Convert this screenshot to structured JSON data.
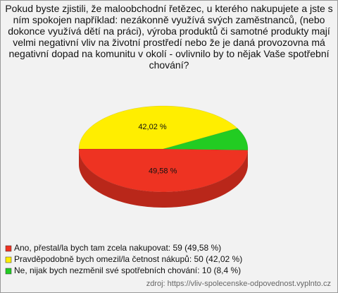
{
  "chart_data": {
    "type": "pie",
    "title": "Pokud byste zjistili, že maloobchodní řetězec, u kterého nakupujete a jste s ním spokojen například: nezákonně využívá svých zaměstnanců, (nebo dokonce využívá dětí na práci), výroba produktů či samotné produkty mají velmi negativní vliv na životní prostředí nebo že je daná provozovna má negativní dopad na komunitu v okolí - ovlivnilo by to nějak Vaše spotřební chování?",
    "categories": [
      "Ano, přestal/la bych tam zcela nakupovat: 59 (49,58 %)",
      "Pravděpodobně bych omezil/la četnost nákupů: 50 (42,02 %)",
      "Ne, nijak bych nezměnil své spotřebních chování: 10 (8,4 %)"
    ],
    "values": [
      49.58,
      42.02,
      8.4
    ],
    "value_labels": [
      "49,58 %",
      "42,02 %",
      null
    ],
    "colors": [
      "#ee3322",
      "#ffee00",
      "#22cc22"
    ],
    "source": "zdroj: https://vliv-spolecenske-odpovednost.vyplnto.cz"
  }
}
